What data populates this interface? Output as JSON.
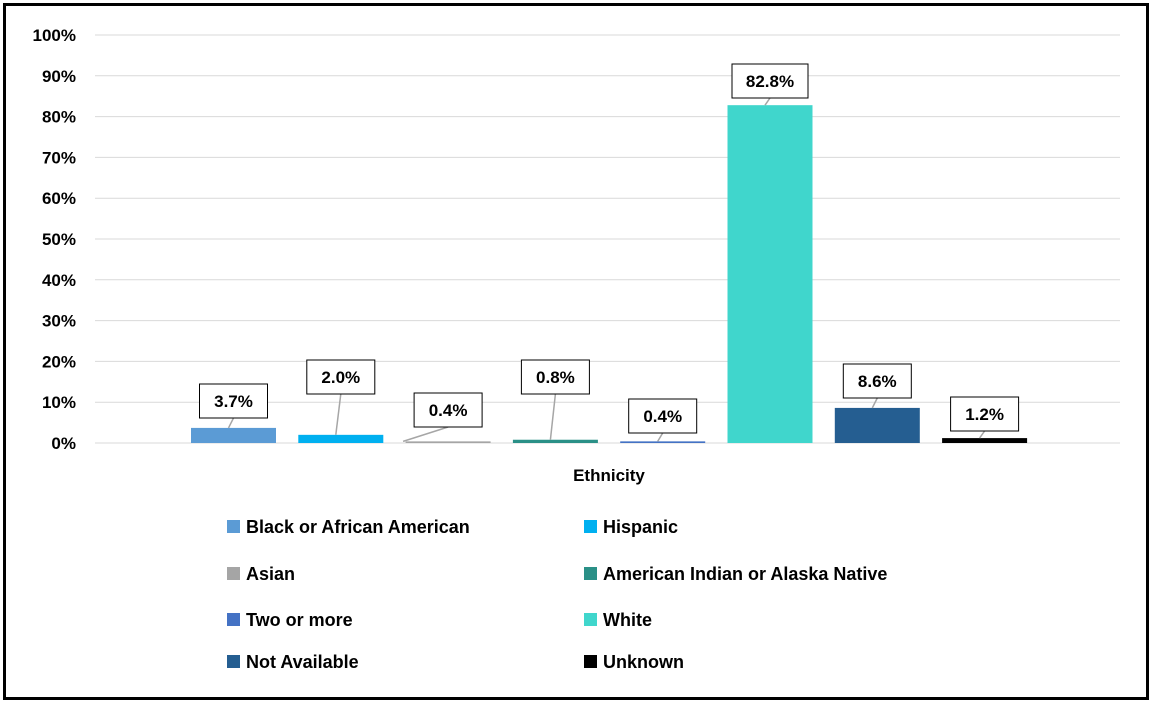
{
  "chart_data": {
    "type": "bar",
    "title": "",
    "xlabel": "Ethnicity",
    "ylabel": "",
    "ylim": [
      0,
      100
    ],
    "yticks": [
      "0%",
      "10%",
      "20%",
      "30%",
      "40%",
      "50%",
      "60%",
      "70%",
      "80%",
      "90%",
      "100%"
    ],
    "grid": true,
    "legend_position": "bottom",
    "categories": [
      "Black or African American",
      "Hispanic",
      "Asian",
      "American Indian or Alaska Native",
      "Two or more",
      "White",
      "Not Available",
      "Unknown"
    ],
    "values": [
      3.7,
      2.0,
      0.4,
      0.8,
      0.4,
      82.8,
      8.6,
      1.2
    ],
    "labels": [
      "3.7%",
      "2.0%",
      "0.4%",
      "0.8%",
      "0.4%",
      "82.8%",
      "8.6%",
      "1.2%"
    ],
    "colors": [
      "#5b9bd5",
      "#00b0f0",
      "#a5a5a5",
      "#2a9087",
      "#4472c4",
      "#40d6cc",
      "#255e91",
      "#000000"
    ]
  }
}
